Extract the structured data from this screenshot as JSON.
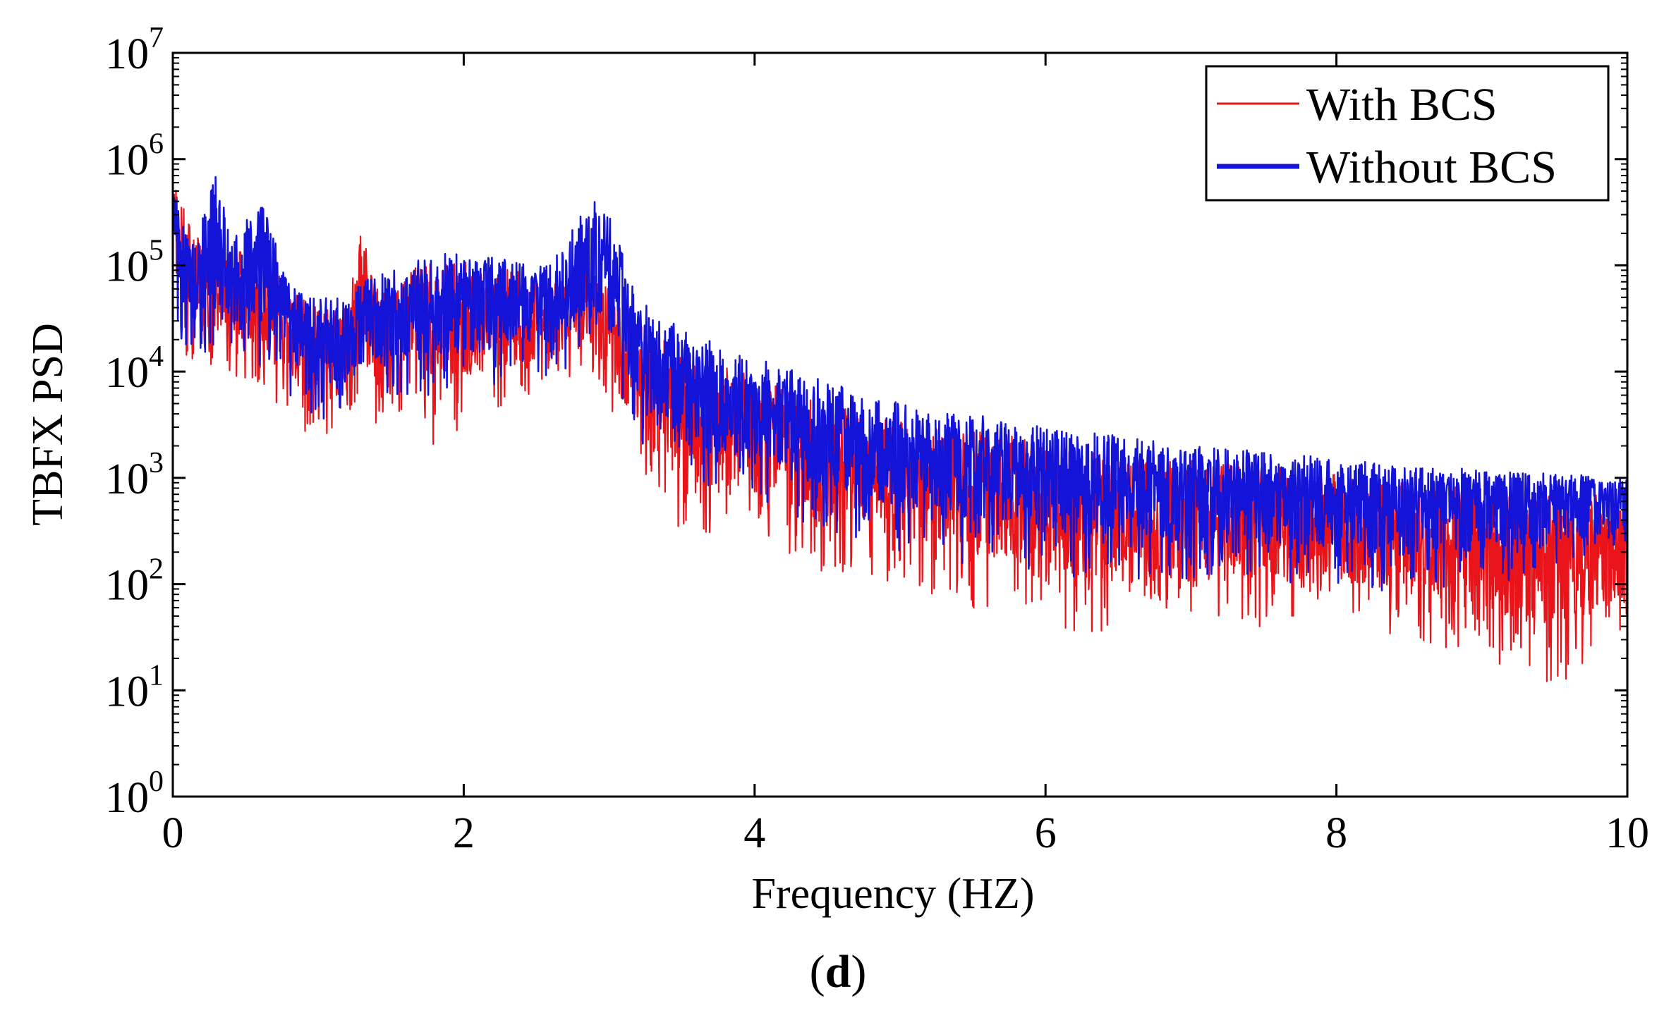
{
  "chart_data": {
    "type": "line",
    "title": "",
    "xlabel": "Frequency (HZ)",
    "ylabel": "TBFX PSD",
    "xlim": [
      0,
      10
    ],
    "ylim": [
      1,
      10000000
    ],
    "yscale": "log",
    "x_ticks": [
      0,
      2,
      4,
      6,
      8,
      10
    ],
    "x_tick_labels": [
      "0",
      "2",
      "4",
      "6",
      "8",
      "10"
    ],
    "y_ticks": [
      {
        "value": 1,
        "base": "10",
        "exp": "0"
      },
      {
        "value": 10,
        "base": "10",
        "exp": "1"
      },
      {
        "value": 100,
        "base": "10",
        "exp": "2"
      },
      {
        "value": 1000,
        "base": "10",
        "exp": "3"
      },
      {
        "value": 10000,
        "base": "10",
        "exp": "4"
      },
      {
        "value": 100000,
        "base": "10",
        "exp": "5"
      },
      {
        "value": 1000000,
        "base": "10",
        "exp": "6"
      },
      {
        "value": 10000000,
        "base": "10",
        "exp": "7"
      }
    ],
    "grid": false,
    "legend_position": "top-right",
    "series": [
      {
        "name": "With BCS",
        "color": "#e8141a",
        "note": "noisy PSD; envelope values (upper/lower) at listed frequencies",
        "x": [
          0.0,
          0.05,
          0.15,
          0.3,
          0.4,
          0.6,
          0.8,
          1.0,
          1.2,
          1.3,
          1.4,
          1.6,
          1.8,
          2.0,
          2.2,
          2.4,
          2.6,
          2.8,
          2.9,
          3.0,
          3.2,
          3.5,
          4.0,
          4.5,
          5.0,
          5.5,
          6.0,
          6.5,
          7.0,
          7.5,
          8.0,
          8.5,
          9.0,
          9.5,
          10.0
        ],
        "upper": [
          900000,
          500000,
          200000,
          150000,
          130000,
          150000,
          60000,
          40000,
          45000,
          250000,
          60000,
          90000,
          110000,
          110000,
          100000,
          90000,
          70000,
          80000,
          100000,
          60000,
          30000,
          15000,
          9000,
          5000,
          3500,
          2800,
          2200,
          1700,
          1500,
          1300,
          1100,
          900,
          800,
          750,
          700
        ],
        "lower": [
          40000,
          15000,
          12000,
          10000,
          9000,
          7000,
          4000,
          2000,
          3000,
          6000,
          3000,
          4000,
          2000,
          3000,
          4000,
          5000,
          6000,
          8000,
          9000,
          4000,
          800,
          300,
          250,
          120,
          100,
          60,
          40,
          30,
          40,
          40,
          40,
          30,
          20,
          10,
          30
        ]
      },
      {
        "name": "Without BCS",
        "color": "#1414d8",
        "note": "noisy PSD; envelope values (upper/lower) at listed frequencies",
        "x": [
          0.0,
          0.05,
          0.15,
          0.3,
          0.4,
          0.6,
          0.8,
          1.0,
          1.2,
          1.3,
          1.4,
          1.6,
          1.8,
          2.0,
          2.2,
          2.4,
          2.6,
          2.8,
          2.9,
          3.0,
          3.2,
          3.5,
          4.0,
          4.5,
          5.0,
          5.5,
          6.0,
          6.5,
          7.0,
          7.5,
          8.0,
          8.5,
          9.0,
          9.5,
          10.0
        ],
        "upper": [
          800000,
          300000,
          150000,
          900000,
          160000,
          450000,
          70000,
          50000,
          50000,
          70000,
          80000,
          110000,
          130000,
          130000,
          120000,
          110000,
          100000,
          300000,
          400000,
          300000,
          50000,
          25000,
          14000,
          8000,
          5000,
          4000,
          3000,
          2500,
          2000,
          1800,
          1500,
          1300,
          1200,
          1100,
          1000
        ],
        "lower": [
          60000,
          20000,
          15000,
          12000,
          10000,
          9000,
          6000,
          3500,
          4000,
          6000,
          5000,
          5000,
          4000,
          6000,
          7000,
          8000,
          9000,
          12000,
          15000,
          8000,
          2000,
          800,
          500,
          300,
          200,
          150,
          120,
          110,
          100,
          100,
          100,
          80,
          100,
          120,
          200
        ]
      }
    ]
  },
  "legend": {
    "items": [
      {
        "label": "With BCS",
        "color": "#e8141a"
      },
      {
        "label": "Without BCS",
        "color": "#1414d8"
      }
    ]
  },
  "caption": {
    "open": "(",
    "letter": "d",
    "close": ")"
  }
}
